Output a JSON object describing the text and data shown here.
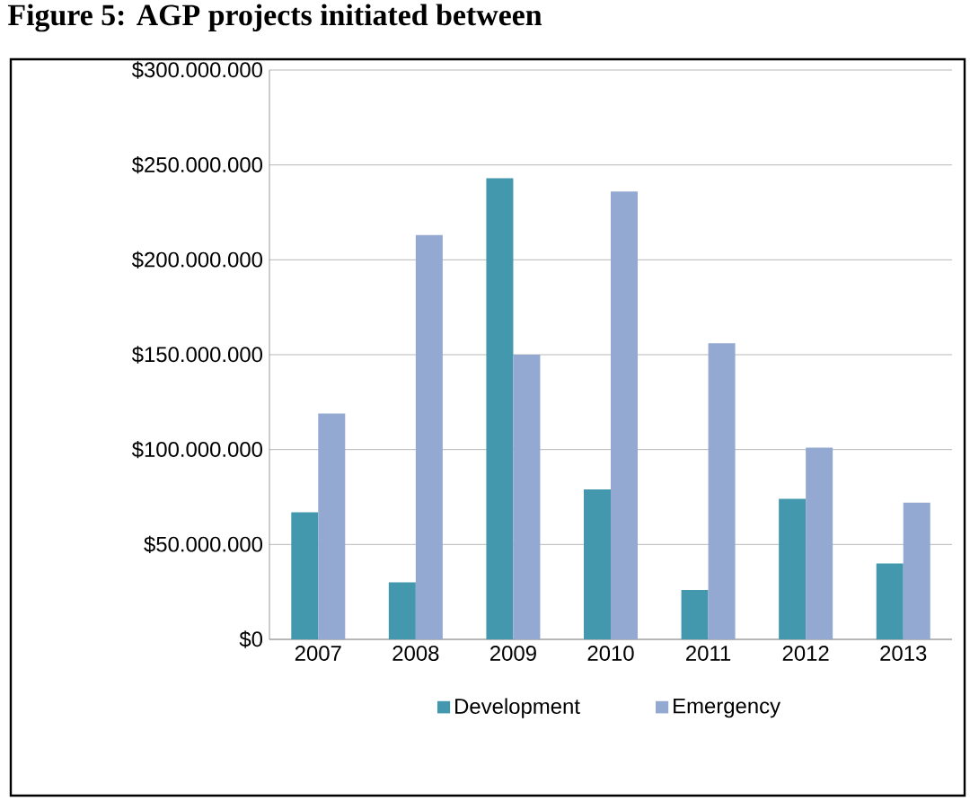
{
  "chart_data": {
    "type": "bar",
    "title": "Figure 5: AGP projects initiated between",
    "categories": [
      "2007",
      "2008",
      "2009",
      "2010",
      "2011",
      "2012",
      "2013"
    ],
    "series": [
      {
        "name": "Development",
        "color": "#4398ae",
        "values": [
          67000000,
          30000000,
          243000000,
          79000000,
          26000000,
          74000000,
          40000000
        ]
      },
      {
        "name": "Emergency",
        "color": "#93a9d1",
        "values": [
          119000000,
          213000000,
          150000000,
          236000000,
          156000000,
          101000000,
          72000000
        ]
      }
    ],
    "ylim": [
      0,
      300000000
    ],
    "yticks": [
      {
        "value": 0,
        "label": "$0"
      },
      {
        "value": 50000000,
        "label": "$50.000.000"
      },
      {
        "value": 100000000,
        "label": "$100.000.000"
      },
      {
        "value": 150000000,
        "label": "$150.000.000"
      },
      {
        "value": 200000000,
        "label": "$200.000.000"
      },
      {
        "value": 250000000,
        "label": "$250.000.000"
      },
      {
        "value": 300000000,
        "label": "$300.000.000"
      }
    ],
    "grid": "y",
    "legend": "bottom"
  }
}
